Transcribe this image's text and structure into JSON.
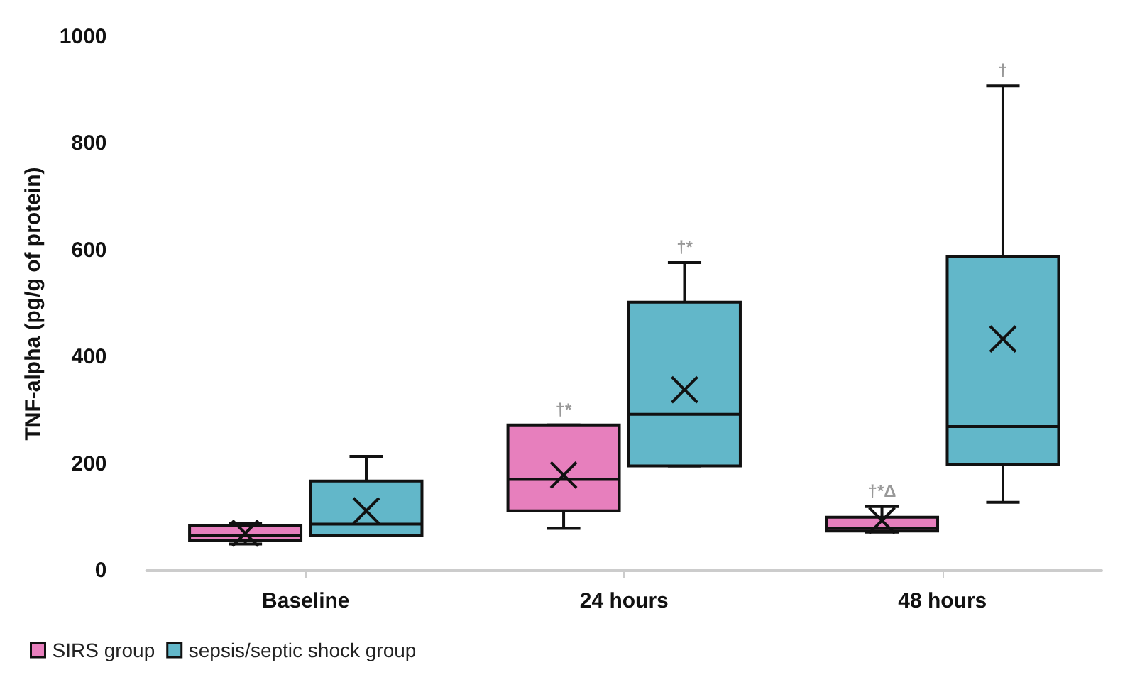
{
  "chart_data": {
    "type": "box",
    "ylabel": "TNF-alpha (pg/g of protein)",
    "categories": [
      "Baseline",
      "24 hours",
      "48 hours"
    ],
    "series": [
      {
        "name": "SIRS group",
        "color": "#e77fbd",
        "boxes": [
          {
            "low": 50,
            "q1": 56,
            "median": 65,
            "q3": 84,
            "high": 89,
            "mean": 70
          },
          {
            "low": 79,
            "q1": 112,
            "median": 171,
            "q3": 273,
            "high": 273,
            "mean": 179
          },
          {
            "low": 72,
            "q1": 74,
            "median": 79,
            "q3": 100,
            "high": 120,
            "mean": 94
          }
        ]
      },
      {
        "name": "sepsis/septic shock group",
        "color": "#62b7c9",
        "boxes": [
          {
            "low": 65,
            "q1": 66,
            "median": 87,
            "q3": 168,
            "high": 214,
            "mean": 112
          },
          {
            "low": 196,
            "q1": 196,
            "median": 293,
            "q3": 503,
            "high": 577,
            "mean": 339
          },
          {
            "low": 128,
            "q1": 199,
            "median": 270,
            "q3": 589,
            "high": 908,
            "mean": 434
          }
        ]
      }
    ],
    "annotations": [
      "†*",
      "†*",
      "†*Δ",
      "†"
    ],
    "ylim": [
      0,
      1000
    ],
    "yticks": [
      0,
      200,
      400,
      600,
      800,
      1000
    ],
    "grid": false,
    "legend": "bottom left"
  }
}
